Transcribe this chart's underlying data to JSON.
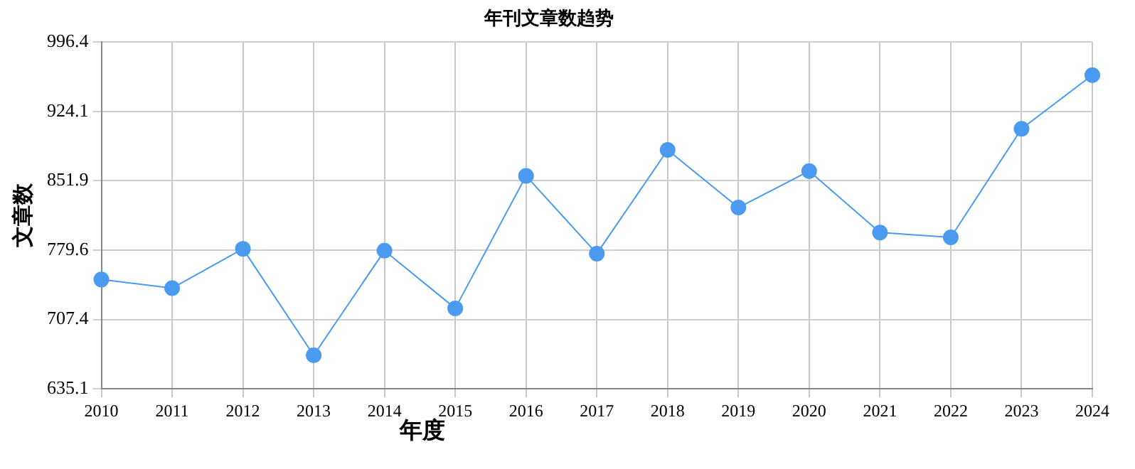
{
  "chart_data": {
    "type": "line",
    "title": "年刊文章数趋势",
    "xlabel": "年度",
    "ylabel": "文章数",
    "categories": [
      "2010",
      "2011",
      "2012",
      "2013",
      "2014",
      "2015",
      "2016",
      "2017",
      "2018",
      "2019",
      "2020",
      "2021",
      "2022",
      "2023",
      "2024"
    ],
    "series": [
      {
        "color": "#4a9bf0",
        "values": [
          749,
          740,
          781,
          670,
          779,
          719,
          857,
          776,
          884,
          824,
          862,
          798,
          793,
          906,
          962
        ]
      }
    ],
    "ylim": [
      635.1,
      996.4
    ],
    "yticks": [
      635.1,
      707.4,
      779.6,
      851.9,
      924.1,
      996.4
    ],
    "grid": true,
    "legend": false,
    "marker": "circle",
    "line_style": "solid"
  }
}
